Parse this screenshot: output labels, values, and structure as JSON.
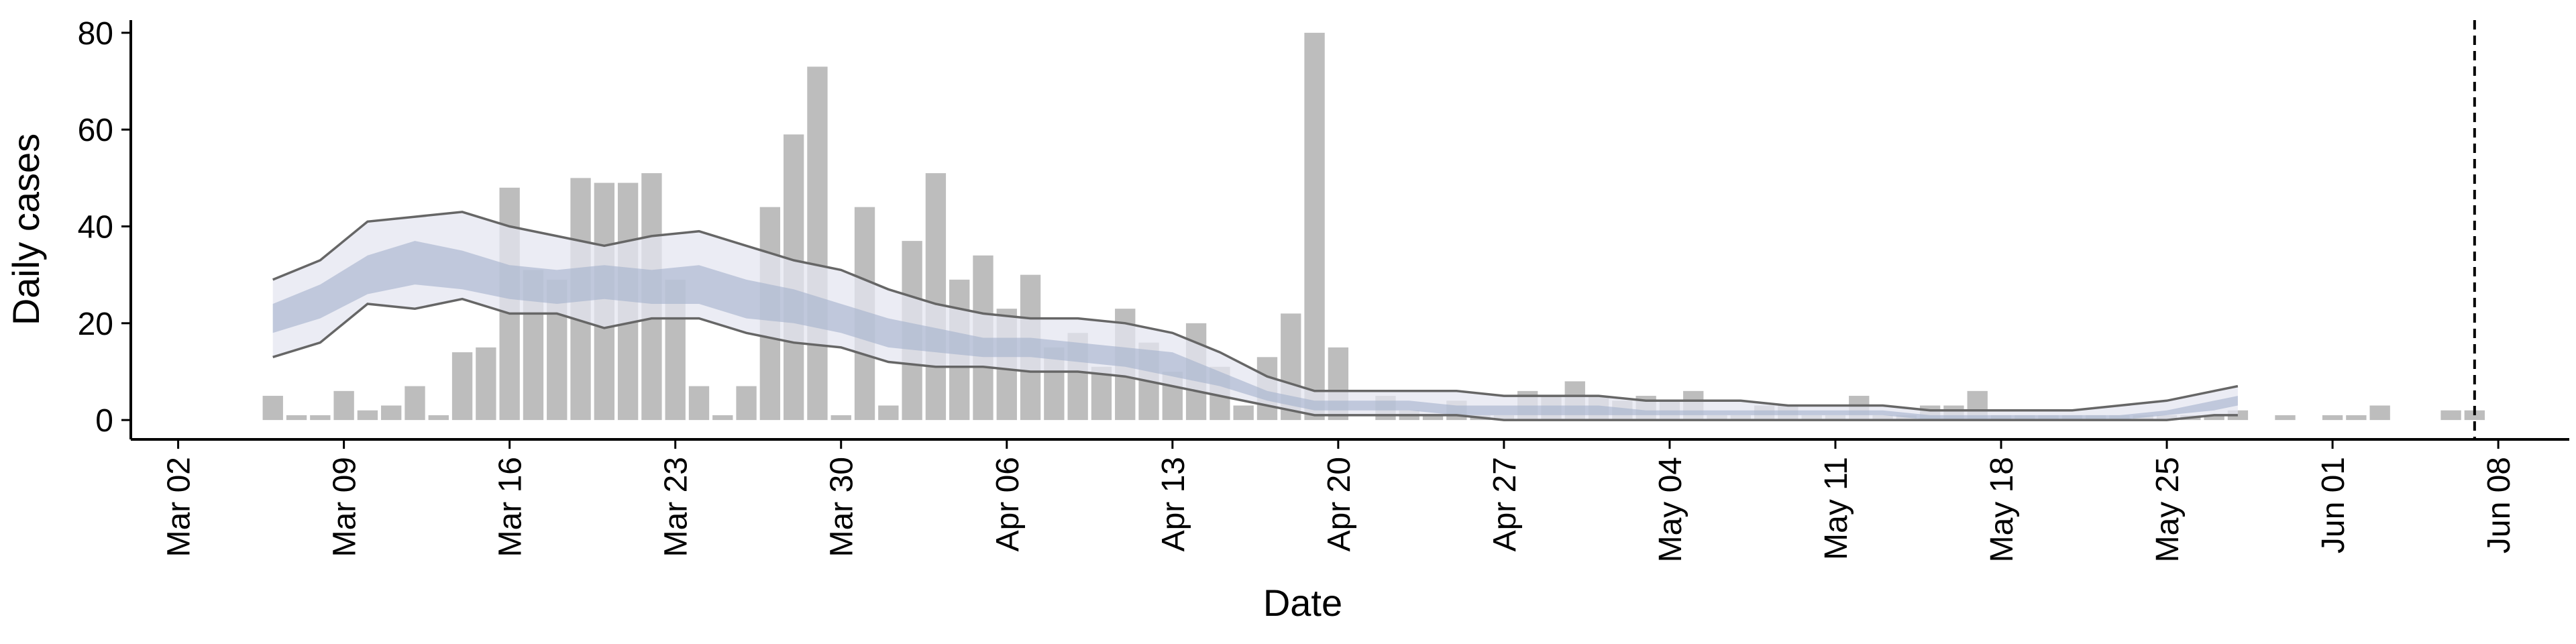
{
  "chart_data": {
    "type": "bar",
    "xlabel": "Date",
    "ylabel": "Daily cases",
    "ylim": [
      -4,
      84
    ],
    "yticks": [
      0,
      20,
      40,
      60,
      80
    ],
    "x_dates_start": "2020-03-02",
    "x_ticks": [
      {
        "date": "2020-03-02",
        "label": "Mar 02"
      },
      {
        "date": "2020-03-09",
        "label": "Mar 09"
      },
      {
        "date": "2020-03-16",
        "label": "Mar 16"
      },
      {
        "date": "2020-03-23",
        "label": "Mar 23"
      },
      {
        "date": "2020-03-30",
        "label": "Mar 30"
      },
      {
        "date": "2020-04-06",
        "label": "Apr 06"
      },
      {
        "date": "2020-04-13",
        "label": "Apr 13"
      },
      {
        "date": "2020-04-20",
        "label": "Apr 20"
      },
      {
        "date": "2020-04-27",
        "label": "Apr 27"
      },
      {
        "date": "2020-05-04",
        "label": "May 04"
      },
      {
        "date": "2020-05-11",
        "label": "May 11"
      },
      {
        "date": "2020-05-18",
        "label": "May 18"
      },
      {
        "date": "2020-05-25",
        "label": "May 25"
      },
      {
        "date": "2020-06-01",
        "label": "Jun 01"
      },
      {
        "date": "2020-06-08",
        "label": "Jun 08"
      }
    ],
    "xlim": [
      "2020-02-29",
      "2020-06-11"
    ],
    "bars": {
      "color": "#bdbdbd",
      "dates": [
        "2020-03-06",
        "2020-03-07",
        "2020-03-08",
        "2020-03-09",
        "2020-03-10",
        "2020-03-11",
        "2020-03-12",
        "2020-03-13",
        "2020-03-14",
        "2020-03-15",
        "2020-03-16",
        "2020-03-17",
        "2020-03-18",
        "2020-03-19",
        "2020-03-20",
        "2020-03-21",
        "2020-03-22",
        "2020-03-23",
        "2020-03-24",
        "2020-03-25",
        "2020-03-26",
        "2020-03-27",
        "2020-03-28",
        "2020-03-29",
        "2020-03-30",
        "2020-03-31",
        "2020-04-01",
        "2020-04-02",
        "2020-04-03",
        "2020-04-04",
        "2020-04-05",
        "2020-04-06",
        "2020-04-07",
        "2020-04-08",
        "2020-04-09",
        "2020-04-10",
        "2020-04-11",
        "2020-04-12",
        "2020-04-13",
        "2020-04-14",
        "2020-04-15",
        "2020-04-16",
        "2020-04-17",
        "2020-04-18",
        "2020-04-19",
        "2020-04-20",
        "2020-04-21",
        "2020-04-22",
        "2020-04-23",
        "2020-04-24",
        "2020-04-25",
        "2020-04-26",
        "2020-04-27",
        "2020-04-28",
        "2020-04-29",
        "2020-04-30",
        "2020-05-01",
        "2020-05-02",
        "2020-05-03",
        "2020-05-04",
        "2020-05-05",
        "2020-05-06",
        "2020-05-07",
        "2020-05-08",
        "2020-05-09",
        "2020-05-10",
        "2020-05-11",
        "2020-05-12",
        "2020-05-13",
        "2020-05-14",
        "2020-05-15",
        "2020-05-16",
        "2020-05-17",
        "2020-05-18",
        "2020-05-19",
        "2020-05-20",
        "2020-05-21",
        "2020-05-22",
        "2020-05-23",
        "2020-05-24",
        "2020-05-25",
        "2020-05-26",
        "2020-05-27",
        "2020-05-28",
        "2020-05-29",
        "2020-05-30",
        "2020-05-31",
        "2020-06-01",
        "2020-06-02",
        "2020-06-03",
        "2020-06-04",
        "2020-06-05",
        "2020-06-06",
        "2020-06-07"
      ],
      "values": [
        5,
        1,
        1,
        6,
        2,
        3,
        7,
        1,
        14,
        15,
        48,
        31,
        29,
        50,
        49,
        49,
        51,
        29,
        7,
        1,
        7,
        44,
        59,
        73,
        1,
        44,
        3,
        37,
        51,
        29,
        34,
        23,
        30,
        15,
        18,
        11,
        23,
        16,
        10,
        20,
        11,
        3,
        13,
        22,
        80,
        15,
        0,
        5,
        2,
        1,
        4,
        1,
        1,
        6,
        5,
        8,
        5,
        4,
        5,
        4,
        6,
        1,
        1,
        3,
        3,
        1,
        1,
        5,
        1,
        1,
        3,
        3,
        6,
        1,
        1,
        1,
        1,
        1,
        1,
        1,
        1,
        1,
        1,
        2,
        0,
        1,
        0,
        1,
        1,
        3,
        0,
        0,
        0,
        0
      ]
    },
    "extra_bars": [
      {
        "date": "2020-06-06",
        "value": 2
      },
      {
        "date": "2020-06-07",
        "value": 2
      }
    ],
    "projection": {
      "dates": [
        "2020-03-06",
        "2020-03-08",
        "2020-03-10",
        "2020-03-12",
        "2020-03-14",
        "2020-03-16",
        "2020-03-18",
        "2020-03-20",
        "2020-03-22",
        "2020-03-24",
        "2020-03-26",
        "2020-03-28",
        "2020-03-30",
        "2020-04-01",
        "2020-04-03",
        "2020-04-05",
        "2020-04-07",
        "2020-04-09",
        "2020-04-11",
        "2020-04-13",
        "2020-04-15",
        "2020-04-17",
        "2020-04-19",
        "2020-04-21",
        "2020-04-23",
        "2020-04-25",
        "2020-04-27",
        "2020-04-29",
        "2020-05-01",
        "2020-05-03",
        "2020-05-05",
        "2020-05-07",
        "2020-05-09",
        "2020-05-11",
        "2020-05-13",
        "2020-05-15",
        "2020-05-17",
        "2020-05-19",
        "2020-05-21",
        "2020-05-23",
        "2020-05-25",
        "2020-05-27",
        "2020-05-28"
      ],
      "outer_upper": [
        29,
        33,
        41,
        42,
        43,
        40,
        38,
        36,
        38,
        39,
        36,
        33,
        31,
        27,
        24,
        22,
        21,
        21,
        20,
        18,
        14,
        9,
        6,
        6,
        6,
        6,
        5,
        5,
        5,
        4,
        4,
        4,
        3,
        3,
        3,
        2,
        2,
        2,
        2,
        3,
        4,
        6,
        7
      ],
      "outer_lower": [
        13,
        16,
        24,
        23,
        25,
        22,
        22,
        19,
        21,
        21,
        18,
        16,
        15,
        12,
        11,
        11,
        10,
        10,
        9,
        7,
        5,
        3,
        1,
        1,
        1,
        1,
        0,
        0,
        0,
        0,
        0,
        0,
        0,
        0,
        0,
        0,
        0,
        0,
        0,
        0,
        0,
        1,
        1
      ],
      "inner_upper": [
        24,
        28,
        34,
        37,
        35,
        32,
        31,
        32,
        31,
        32,
        29,
        27,
        24,
        21,
        19,
        17,
        17,
        16,
        15,
        14,
        10,
        6,
        4,
        4,
        4,
        3,
        3,
        3,
        3,
        2,
        2,
        2,
        2,
        2,
        2,
        1,
        1,
        1,
        1,
        1,
        2,
        4,
        5
      ],
      "inner_lower": [
        18,
        21,
        26,
        28,
        27,
        25,
        24,
        25,
        24,
        24,
        21,
        20,
        18,
        15,
        14,
        13,
        13,
        12,
        11,
        9,
        7,
        4,
        2,
        2,
        2,
        1,
        1,
        1,
        1,
        1,
        1,
        1,
        1,
        1,
        1,
        0,
        0,
        0,
        0,
        0,
        1,
        2,
        3
      ],
      "outer_color": "#e4e6f0",
      "inner_color": "#a4b0cc",
      "line_color": "#666666"
    },
    "vline": {
      "date": "2020-06-07",
      "style": "dashed",
      "color": "#000000"
    }
  }
}
